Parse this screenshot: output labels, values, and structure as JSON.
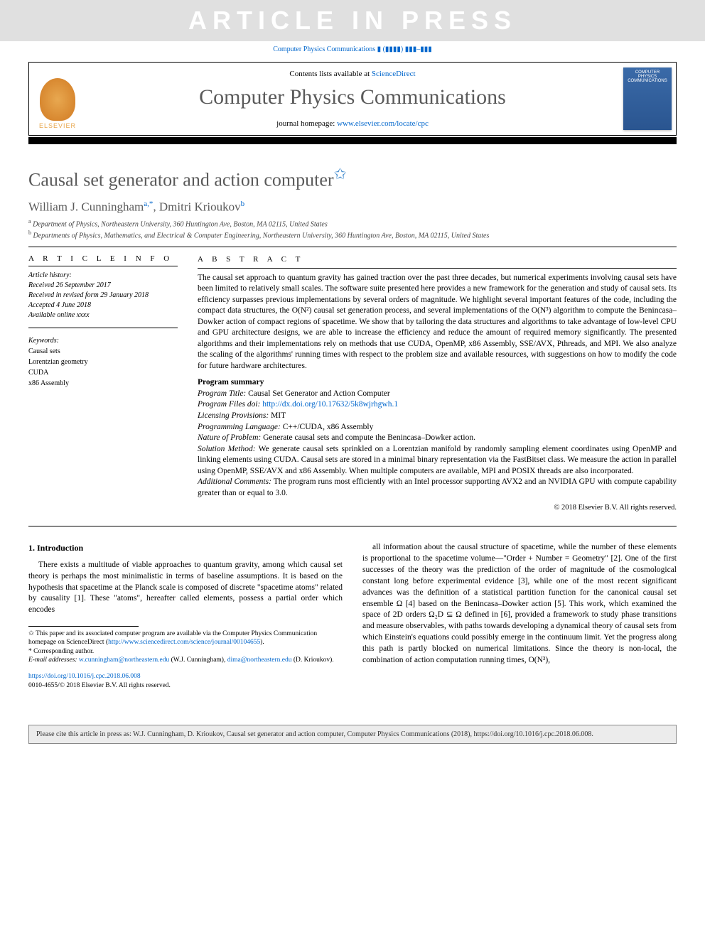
{
  "watermark": "ARTICLE IN PRESS",
  "journal_cite_top": "Computer Physics Communications ▮ (▮▮▮▮) ▮▮▮–▮▮▮",
  "header": {
    "contents_prefix": "Contents lists available at ",
    "contents_link": "ScienceDirect",
    "journal_name": "Computer Physics Communications",
    "homepage_prefix": "journal homepage: ",
    "homepage_url": "www.elsevier.com/locate/cpc",
    "elsevier_label": "ELSEVIER",
    "cover_text": "COMPUTER PHYSICS COMMUNICATIONS"
  },
  "article": {
    "title": "Causal set generator and action computer",
    "title_star": "✩",
    "authors_html": "William J. Cunningham",
    "author1": "William J. Cunningham",
    "author1_sup": "a,*",
    "author_sep": ", ",
    "author2": "Dmitri Krioukov",
    "author2_sup": "b",
    "affiliations": {
      "a_sup": "a",
      "a": "Department of Physics, Northeastern University, 360 Huntington Ave, Boston, MA 02115, United States",
      "b_sup": "b",
      "b": "Departments of Physics, Mathematics, and Electrical & Computer Engineering, Northeastern University, 360 Huntington Ave, Boston, MA 02115, United States"
    }
  },
  "info": {
    "label": "A R T I C L E   I N F O",
    "history_label": "Article history:",
    "received": "Received 26 September 2017",
    "revised": "Received in revised form 29 January 2018",
    "accepted": "Accepted 4 June 2018",
    "online": "Available online xxxx",
    "keywords_label": "Keywords:",
    "keywords": [
      "Causal sets",
      "Lorentzian geometry",
      "CUDA",
      "x86 Assembly"
    ]
  },
  "abstract": {
    "label": "A B S T R A C T",
    "text": "The causal set approach to quantum gravity has gained traction over the past three decades, but numerical experiments involving causal sets have been limited to relatively small scales. The software suite presented here provides a new framework for the generation and study of causal sets. Its efficiency surpasses previous implementations by several orders of magnitude. We highlight several important features of the code, including the compact data structures, the O(N²) causal set generation process, and several implementations of the O(N³) algorithm to compute the Benincasa–Dowker action of compact regions of spacetime. We show that by tailoring the data structures and algorithms to take advantage of low-level CPU and GPU architecture designs, we are able to increase the efficiency and reduce the amount of required memory significantly. The presented algorithms and their implementations rely on methods that use CUDA, OpenMP, x86 Assembly, SSE/AVX, Pthreads, and MPI. We also analyze the scaling of the algorithms' running times with respect to the problem size and available resources, with suggestions on how to modify the code for future hardware architectures.",
    "summary_head": "Program summary",
    "rows": {
      "title_k": "Program Title:",
      "title_v": " Causal Set Generator and Action Computer",
      "files_k": "Program Files doi:",
      "files_v": " http://dx.doi.org/10.17632/5k8wjrhgwh.1",
      "lic_k": "Licensing Provisions:",
      "lic_v": " MIT",
      "lang_k": "Programming Language:",
      "lang_v": " C++/CUDA, x86 Assembly",
      "nat_k": "Nature of Problem:",
      "nat_v": " Generate causal sets and compute the Benincasa–Dowker action.",
      "sol_k": "Solution Method:",
      "sol_v": " We generate causal sets sprinkled on a Lorentzian manifold by randomly sampling element coordinates using OpenMP and linking elements using CUDA. Causal sets are stored in a minimal binary representation via the FastBitset class. We measure the action in parallel using OpenMP, SSE/AVX and x86 Assembly. When multiple computers are available, MPI and POSIX threads are also incorporated.",
      "add_k": "Additional Comments:",
      "add_v": " The program runs most efficiently with an Intel processor supporting AVX2 and an NVIDIA GPU with compute capability greater than or equal to 3.0."
    },
    "copyright": "© 2018 Elsevier B.V. All rights reserved."
  },
  "body": {
    "section_num": "1.",
    "section_title": " Introduction",
    "col1_p1": "There exists a multitude of viable approaches to quantum gravity, among which causal set theory is perhaps the most minimalistic in terms of baseline assumptions. It is based on the hypothesis that spacetime at the Planck scale is composed of discrete \"spacetime atoms\" related by causality [1]. These \"atoms\", hereafter called elements, possess a partial order which encodes",
    "col2_p1": "all information about the causal structure of spacetime, while the number of these elements is proportional to the spacetime volume—\"Order + Number = Geometry\" [2]. One of the first successes of the theory was the prediction of the order of magnitude of the cosmological constant long before experimental evidence [3], while one of the most recent significant advances was the definition of a statistical partition function for the canonical causal set ensemble Ω [4] based on the Benincasa–Dowker action [5]. This work, which examined the space of 2D orders Ω₂D ⊆ Ω defined in [6], provided a framework to study phase transitions and measure observables, with paths towards developing a dynamical theory of causal sets from which Einstein's equations could possibly emerge in the continuum limit. Yet the progress along this path is partly blocked on numerical limitations. Since the theory is non-local, the combination of action computation running times, O(N³),"
  },
  "footnotes": {
    "star_note_pre": "✩ This paper and its associated computer program are available via the Computer Physics Communication homepage on ScienceDirect (",
    "star_note_link": "http://www.sciencedirect.com/science/journal/00104655",
    "star_note_post": ").",
    "corr": "* Corresponding author.",
    "email_label": "E-mail addresses: ",
    "email1": "w.cunningham@northeastern.edu",
    "email1_who": " (W.J. Cunningham), ",
    "email2": "dima@northeastern.edu",
    "email2_who": " (D. Krioukov)."
  },
  "doi": {
    "url": "https://doi.org/10.1016/j.cpc.2018.06.008",
    "line2": "0010-4655/© 2018 Elsevier B.V. All rights reserved."
  },
  "cite_footer": "Please cite this article in press as: W.J. Cunningham, D. Krioukov, Causal set generator and action computer, Computer Physics Communications (2018), https://doi.org/10.1016/j.cpc.2018.06.008.",
  "colors": {
    "link": "#0066cc",
    "heading_gray": "#5a5a5a",
    "watermark_bg": "#e0e0e0",
    "cover_bg": "#3a6aa8",
    "elsevier_orange": "#e8a850",
    "footer_bg": "#ececec"
  },
  "fonts": {
    "body": "Times New Roman",
    "title_size_pt": 26,
    "authors_size_pt": 17,
    "abstract_size_pt": 11.5,
    "info_size_pt": 10,
    "footnote_size_pt": 9.5
  }
}
